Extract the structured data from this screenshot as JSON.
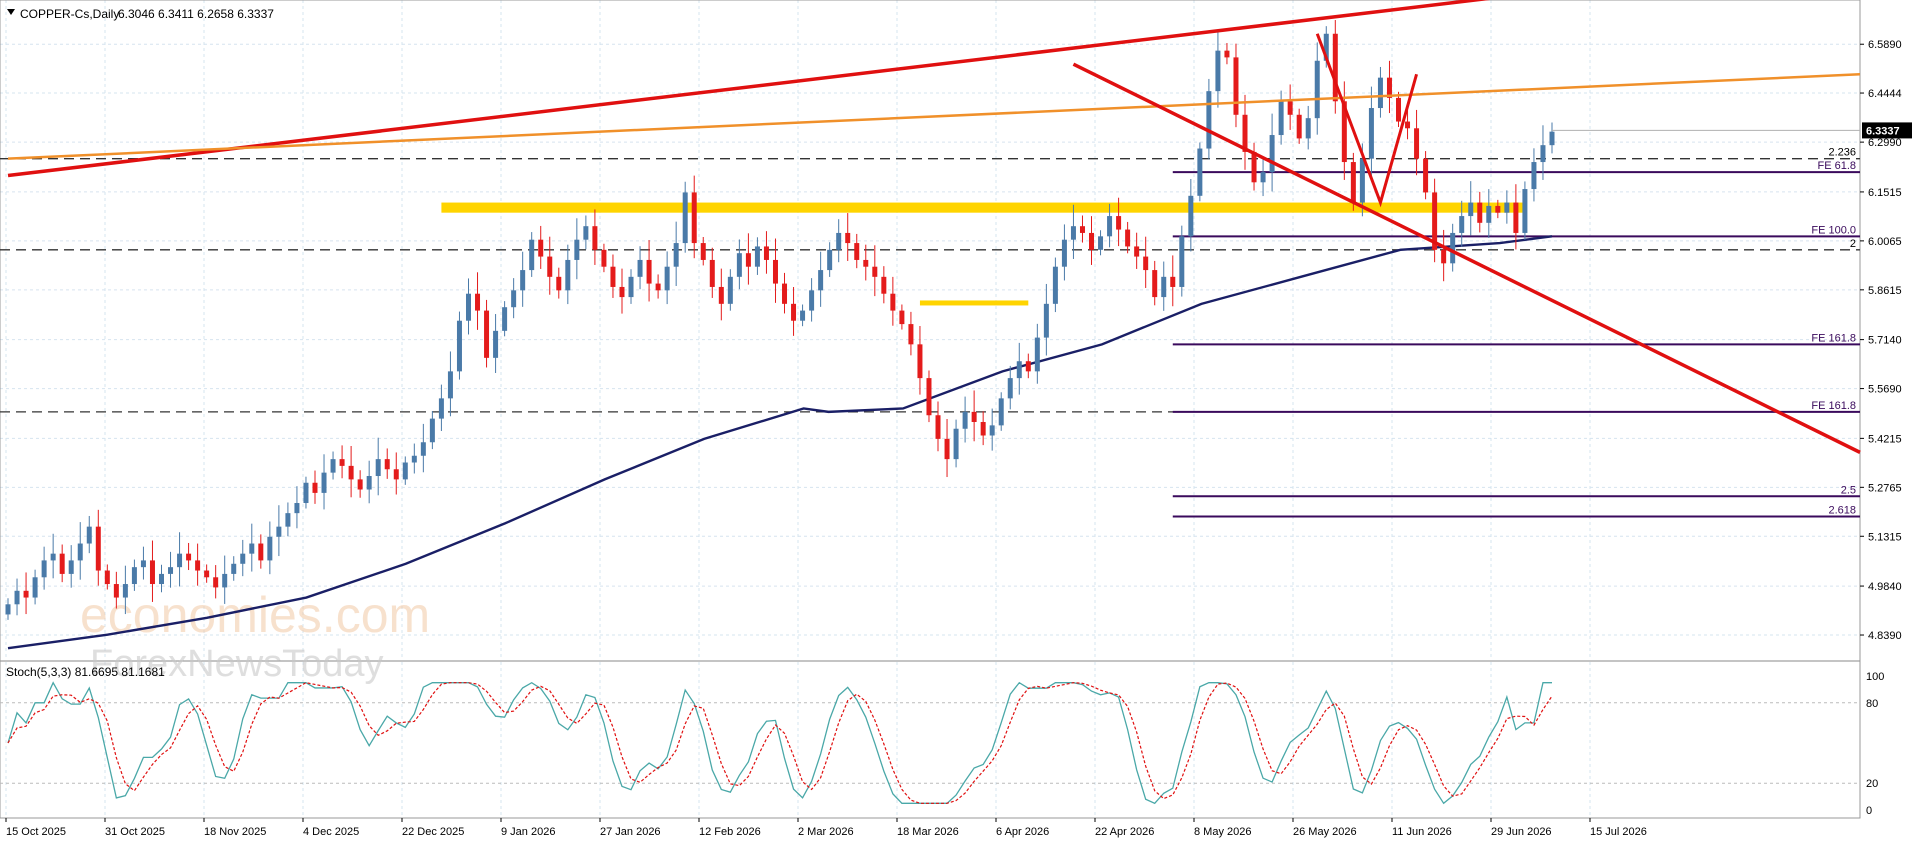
{
  "header": {
    "symbol_label": "COPPER-Cs,Daily",
    "ohlc_values": "6.3046 6.3411 6.2658 6.3337"
  },
  "stoch_panel": {
    "label": "Stoch(5,3,3) 81.6695 81.1681"
  },
  "watermark": {
    "line1": "economies.com",
    "line2": "ForexNewsToday"
  },
  "colors": {
    "bull_candle": "#4a7aa8",
    "bear_candle": "#e41b1b",
    "ma_line": "#1a1f66",
    "trend_red": "#e01010",
    "trend_orange": "#f0902a",
    "zone_yellow": "#ffd400",
    "fib_purple": "#3a0a5c",
    "stoch_main": "#4aa8a8",
    "stoch_signal": "#e01010",
    "grid": "#d6e4ef"
  },
  "chart_data": {
    "type": "candlestick",
    "instrument": "COPPER-Cs",
    "timeframe": "Daily",
    "current_price": "6.3337",
    "y_range": [
      4.765,
      6.72
    ],
    "y_ticks": [
      "6.5890",
      "6.4444",
      "6.2990",
      "6.1515",
      "6.0065",
      "5.8615",
      "5.7140",
      "5.5690",
      "5.4215",
      "5.2765",
      "5.1315",
      "4.9840",
      "4.8390"
    ],
    "x_ticks": [
      "15 Oct 2025",
      "31 Oct 2025",
      "18 Nov 2025",
      "4 Dec 2025",
      "22 Dec 2025",
      "9 Jan 2026",
      "27 Jan 2026",
      "12 Feb 2026",
      "2 Mar 2026",
      "18 Mar 2026",
      "6 Apr 2026",
      "22 Apr 2026",
      "8 May 2026",
      "26 May 2026",
      "11 Jun 2026",
      "29 Jun 2026",
      "15 Jul 2026"
    ],
    "ohlc_path": [
      4.93,
      4.97,
      4.95,
      5.01,
      5.06,
      5.08,
      5.02,
      5.06,
      5.11,
      5.16,
      5.03,
      4.99,
      4.95,
      4.99,
      5.04,
      5.06,
      4.99,
      5.02,
      5.04,
      5.08,
      5.06,
      5.03,
      5.01,
      4.98,
      5.02,
      5.05,
      5.08,
      5.11,
      5.06,
      5.13,
      5.16,
      5.2,
      5.23,
      5.29,
      5.26,
      5.32,
      5.36,
      5.34,
      5.3,
      5.27,
      5.31,
      5.36,
      5.33,
      5.3,
      5.35,
      5.37,
      5.41,
      5.48,
      5.54,
      5.62,
      5.77,
      5.85,
      5.8,
      5.66,
      5.74,
      5.81,
      5.86,
      5.92,
      6.01,
      5.96,
      5.9,
      5.86,
      5.95,
      6.01,
      6.05,
      5.98,
      5.93,
      5.87,
      5.84,
      5.9,
      5.95,
      5.88,
      5.86,
      5.93,
      6.0,
      6.15,
      6.0,
      5.95,
      5.87,
      5.82,
      5.9,
      5.97,
      5.93,
      5.99,
      5.95,
      5.88,
      5.82,
      5.77,
      5.8,
      5.86,
      5.92,
      5.98,
      6.03,
      6.0,
      5.95,
      5.93,
      5.9,
      5.85,
      5.8,
      5.76,
      5.7,
      5.6,
      5.49,
      5.42,
      5.36,
      5.45,
      5.5,
      5.47,
      5.43,
      5.46,
      5.54,
      5.6,
      5.65,
      5.62,
      5.72,
      5.82,
      5.93,
      6.01,
      6.05,
      6.03,
      5.98,
      6.02,
      6.08,
      6.04,
      5.99,
      5.96,
      5.92,
      5.84,
      5.9,
      5.87,
      6.02,
      6.14,
      6.28,
      6.45,
      6.57,
      6.55,
      6.38,
      6.27,
      6.18,
      6.21,
      6.32,
      6.42,
      6.38,
      6.31,
      6.37,
      6.54,
      6.62,
      6.42,
      6.24,
      6.12,
      6.25,
      6.4,
      6.49,
      6.43,
      6.36,
      6.34,
      6.25,
      6.15,
      5.98,
      5.94,
      6.03,
      6.08,
      6.12,
      6.06,
      6.11,
      6.09,
      6.12,
      6.03,
      6.16,
      6.24,
      6.29,
      6.33
    ],
    "moving_average_points": [
      [
        0,
        4.8
      ],
      [
        40,
        4.84
      ],
      [
        80,
        4.89
      ],
      [
        120,
        4.95
      ],
      [
        160,
        5.05
      ],
      [
        200,
        5.17
      ],
      [
        240,
        5.3
      ],
      [
        280,
        5.42
      ],
      [
        320,
        5.51
      ],
      [
        330,
        5.5
      ],
      [
        360,
        5.51
      ],
      [
        400,
        5.62
      ],
      [
        440,
        5.7
      ],
      [
        480,
        5.82
      ],
      [
        520,
        5.9
      ],
      [
        560,
        5.98
      ],
      [
        600,
        6.0
      ],
      [
        621,
        6.02
      ]
    ],
    "moving_average_index_scale": 621,
    "trendlines": [
      {
        "color": "trend_red",
        "from": [
          "bar 0",
          6.2
        ],
        "to": [
          "bar 175",
          6.76
        ]
      },
      {
        "color": "trend_orange",
        "from": [
          "bar 0",
          6.25
        ],
        "to": [
          "right edge",
          6.5
        ]
      },
      {
        "color": "trend_red",
        "from": [
          "bar 118",
          6.53
        ],
        "to": [
          "right edge",
          5.38
        ]
      }
    ],
    "support_zones": [
      {
        "label": "",
        "from_level": 6.09,
        "to_level": 6.12,
        "color": "zone_yellow"
      },
      {
        "label": "",
        "from_level": 5.82,
        "to_level": 5.83,
        "color": "zone_yellow"
      }
    ],
    "dashed_levels": [
      {
        "level": 6.25,
        "label": "2.236"
      },
      {
        "level": 5.98,
        "label": "2"
      },
      {
        "level": 5.5,
        "label": ""
      }
    ],
    "fib_levels": [
      {
        "label": "FE 61.8",
        "level": 6.21
      },
      {
        "label": "FE 100.0",
        "level": 6.02
      },
      {
        "label": "FE 161.8",
        "level": 5.7
      },
      {
        "label": "FE 161.8",
        "level": 5.5
      },
      {
        "label": "2.5",
        "level": 5.25
      },
      {
        "label": "2.618",
        "level": 5.19
      }
    ],
    "stochastic": {
      "params": "5,3,3",
      "k": 81.6695,
      "d": 81.1681,
      "levels": [
        0,
        20,
        80,
        100
      ],
      "y_ticks": [
        "100",
        "80",
        "20",
        "0"
      ]
    }
  }
}
